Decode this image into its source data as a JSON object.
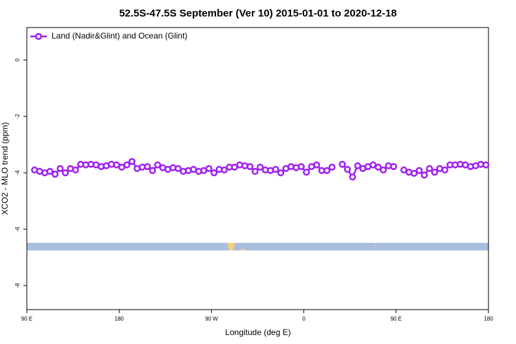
{
  "chart_data": {
    "type": "line",
    "title": "52.5S-47.5S September (Ver 10)   2015-01-01 to 2020-12-18",
    "x_label": "Longitude (deg E)",
    "y_label": "XCO2 - MLO trend (ppm)",
    "x": [
      97.5,
      102.5,
      107.5,
      112.5,
      117.5,
      122.5,
      127.5,
      132.5,
      137.5,
      142.5,
      147.5,
      152.5,
      157.5,
      162.5,
      167.5,
      172.5,
      177.5,
      182.5,
      187.5,
      192.5,
      197.5,
      202.5,
      207.5,
      212.5,
      217.5,
      222.5,
      227.5,
      232.5,
      237.5,
      242.5,
      247.5,
      252.5,
      257.5,
      262.5,
      267.5,
      272.5,
      277.5,
      282.5,
      287.5,
      292.5,
      297.5,
      302.5,
      307.5,
      312.5,
      317.5,
      322.5,
      327.5,
      332.5,
      337.5,
      342.5,
      347.5,
      352.5,
      357.5,
      362.5,
      367.5,
      372.5,
      377.5,
      382.5,
      387.5,
      392.5,
      397.5,
      402.5,
      407.5,
      412.5,
      417.5,
      422.5,
      427.5,
      432.5,
      437.5,
      442.5,
      447.5,
      452.5,
      457.5,
      462.5,
      467.5,
      472.5,
      477.5,
      482.5,
      487.5,
      492.5,
      497.5,
      502.5,
      507.5,
      512.5,
      517.5,
      522.5,
      527.5,
      532.5,
      537.5
    ],
    "series": [
      {
        "name": "Land (Nadir&Glint) and Ocean (Glint)",
        "color": "#a020f0",
        "values": [
          -3.9,
          -3.95,
          -4.0,
          -3.95,
          -4.05,
          -3.85,
          -4.0,
          -3.85,
          -3.9,
          -3.7,
          -3.72,
          -3.7,
          -3.72,
          -3.78,
          -3.75,
          -3.7,
          -3.72,
          -3.8,
          -3.72,
          -3.6,
          -3.85,
          -3.8,
          -3.78,
          -3.92,
          -3.72,
          -3.82,
          -3.88,
          -3.82,
          -3.85,
          -3.95,
          -3.92,
          -3.88,
          -3.95,
          -3.92,
          -3.85,
          -4.0,
          -3.88,
          -3.9,
          -3.8,
          -3.8,
          -3.72,
          -3.75,
          -3.78,
          -3.95,
          -3.8,
          -3.9,
          -3.92,
          -3.88,
          -4.0,
          -3.85,
          -3.78,
          -3.82,
          -3.78,
          -3.98,
          -3.78,
          -3.72,
          -3.92,
          -3.92,
          -3.8,
          null,
          -3.7,
          -3.88,
          -4.15,
          -3.75,
          -3.85,
          -3.78,
          -3.72,
          -3.8,
          -3.9,
          -3.75,
          -3.78,
          null,
          -3.9,
          -3.98,
          -4.02,
          -3.92,
          -4.08,
          -3.85,
          -3.98,
          -3.85,
          -3.9,
          -3.72,
          -3.72,
          -3.7,
          -3.72,
          -3.78,
          -3.75,
          -3.7,
          -3.72
        ]
      }
    ],
    "xlim": [
      90,
      540
    ],
    "xticks": [
      {
        "value": 90,
        "label": "90 E"
      },
      180,
      {
        "value": 270,
        "label": "90 W"
      },
      {
        "value": 360,
        "label": "0"
      },
      {
        "value": 450,
        "label": "90 E"
      },
      {
        "value": 540,
        "label": "180"
      }
    ],
    "ylim": [
      -8.85,
      1.15
    ],
    "yticks": [
      0,
      -2,
      -4,
      -6,
      -8
    ],
    "legend": "top-left"
  }
}
